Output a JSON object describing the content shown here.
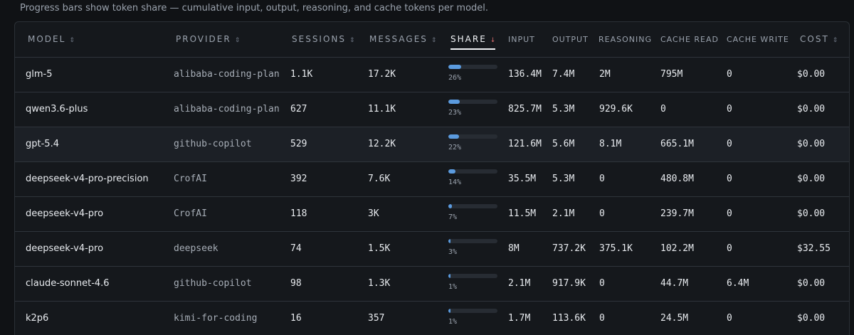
{
  "caption": "Progress bars show token share — cumulative input, output, reasoning, and cache tokens per model.",
  "columns": {
    "model": "MODEL",
    "provider": "PROVIDER",
    "sessions": "SESSIONS",
    "messages": "MESSAGES",
    "share": "SHARE",
    "input": "INPUT",
    "output": "OUTPUT",
    "reasoning": "REASONING",
    "cache_read": "CACHE READ",
    "cache_write": "CACHE WRITE",
    "cost": "COST"
  },
  "sort_icons": {
    "unsorted": "⇕",
    "sorted_desc": "↓"
  },
  "sorted_column": "share",
  "colors": {
    "accent": "#5b9bdf",
    "background": "#101215",
    "sort_active": "#e07070"
  },
  "rows": [
    {
      "model": "glm-5",
      "provider": "alibaba-coding-plan",
      "sessions": "1.1K",
      "messages": "17.2K",
      "share_pct": 26,
      "share_label": "26%",
      "input": "136.4M",
      "output": "7.4M",
      "reasoning": "2M",
      "cache_read": "795M",
      "cache_write": "0",
      "cost": "$0.00"
    },
    {
      "model": "qwen3.6-plus",
      "provider": "alibaba-coding-plan",
      "sessions": "627",
      "messages": "11.1K",
      "share_pct": 23,
      "share_label": "23%",
      "input": "825.7M",
      "output": "5.3M",
      "reasoning": "929.6K",
      "cache_read": "0",
      "cache_write": "0",
      "cost": "$0.00"
    },
    {
      "model": "gpt-5.4",
      "provider": "github-copilot",
      "sessions": "529",
      "messages": "12.2K",
      "share_pct": 22,
      "share_label": "22%",
      "input": "121.6M",
      "output": "5.6M",
      "reasoning": "8.1M",
      "cache_read": "665.1M",
      "cache_write": "0",
      "cost": "$0.00"
    },
    {
      "model": "deepseek-v4-pro-precision",
      "provider": "CrofAI",
      "sessions": "392",
      "messages": "7.6K",
      "share_pct": 14,
      "share_label": "14%",
      "input": "35.5M",
      "output": "5.3M",
      "reasoning": "0",
      "cache_read": "480.8M",
      "cache_write": "0",
      "cost": "$0.00"
    },
    {
      "model": "deepseek-v4-pro",
      "provider": "CrofAI",
      "sessions": "118",
      "messages": "3K",
      "share_pct": 7,
      "share_label": "7%",
      "input": "11.5M",
      "output": "2.1M",
      "reasoning": "0",
      "cache_read": "239.7M",
      "cache_write": "0",
      "cost": "$0.00"
    },
    {
      "model": "deepseek-v4-pro",
      "provider": "deepseek",
      "sessions": "74",
      "messages": "1.5K",
      "share_pct": 3,
      "share_label": "3%",
      "input": "8M",
      "output": "737.2K",
      "reasoning": "375.1K",
      "cache_read": "102.2M",
      "cache_write": "0",
      "cost": "$32.55"
    },
    {
      "model": "claude-sonnet-4.6",
      "provider": "github-copilot",
      "sessions": "98",
      "messages": "1.3K",
      "share_pct": 1,
      "share_label": "1%",
      "input": "2.1M",
      "output": "917.9K",
      "reasoning": "0",
      "cache_read": "44.7M",
      "cache_write": "6.4M",
      "cost": "$0.00"
    },
    {
      "model": "k2p6",
      "provider": "kimi-for-coding",
      "sessions": "16",
      "messages": "357",
      "share_pct": 1,
      "share_label": "1%",
      "input": "1.7M",
      "output": "113.6K",
      "reasoning": "0",
      "cache_read": "24.5M",
      "cache_write": "0",
      "cost": "$0.00"
    }
  ]
}
